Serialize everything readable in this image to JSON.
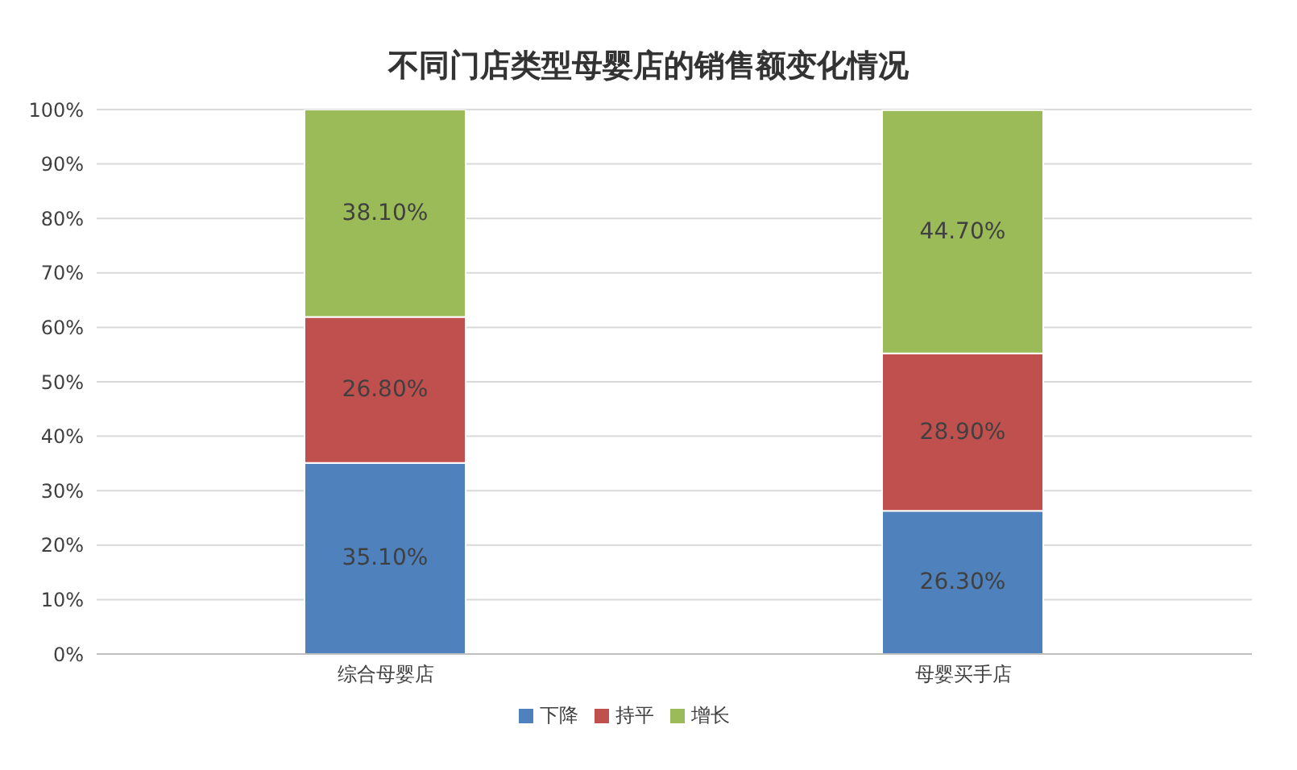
{
  "chart_data": {
    "type": "bar",
    "title": "不同门店类型母婴店的销售额变化情况",
    "stacked": true,
    "categories": [
      "综合母婴店",
      "母婴买手店"
    ],
    "series": [
      {
        "name": "下降",
        "color": "#4f81bd",
        "values": [
          35.1,
          26.3
        ],
        "value_labels": [
          "35.10%",
          "26.30%"
        ]
      },
      {
        "name": "持平",
        "color": "#c0504d",
        "values": [
          26.8,
          28.9
        ],
        "value_labels": [
          "26.80%",
          "28.90%"
        ]
      },
      {
        "name": "增长",
        "color": "#9bbb59",
        "values": [
          38.1,
          44.7
        ],
        "value_labels": [
          "38.10%",
          "44.70%"
        ]
      }
    ],
    "ylim": [
      0,
      100
    ],
    "yticks": [
      {
        "value": 0,
        "label": "0%"
      },
      {
        "value": 10,
        "label": "10%"
      },
      {
        "value": 20,
        "label": "20%"
      },
      {
        "value": 30,
        "label": "30%"
      },
      {
        "value": 40,
        "label": "40%"
      },
      {
        "value": 50,
        "label": "50%"
      },
      {
        "value": 60,
        "label": "60%"
      },
      {
        "value": 70,
        "label": "70%"
      },
      {
        "value": 80,
        "label": "80%"
      },
      {
        "value": 90,
        "label": "90%"
      },
      {
        "value": 100,
        "label": "100%"
      }
    ],
    "grid": "y",
    "legend": "bottom"
  }
}
